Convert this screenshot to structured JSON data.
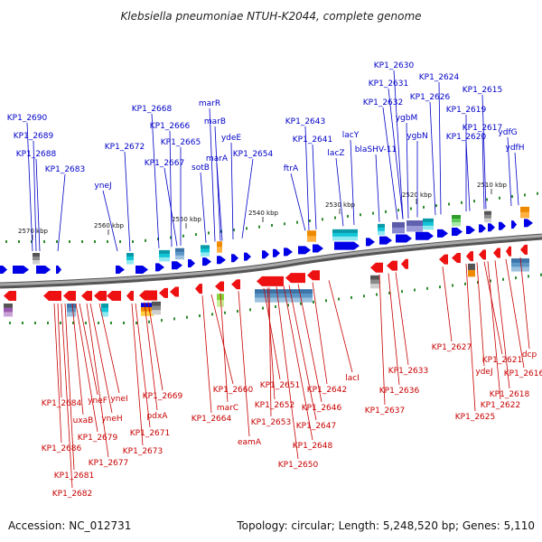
{
  "title": "Klebsiella pneumoniae NTUH-K2044, complete genome",
  "footer": {
    "accession": "Accession: NC_012731",
    "summary": "Topology: circular; Length: 5,248,520 bp; Genes: 5,110"
  },
  "colors": {
    "forward": "#0000e6",
    "reverse": "#ee1111",
    "forward_label": "#0000c8",
    "reverse_label": "#c80000",
    "backbone": "#7a7a7a",
    "tick": "#2e8b2e"
  },
  "ticks": [
    "2570 kbp",
    "2560 kbp",
    "2550 kbp",
    "2540 kbp",
    "2530 kbp",
    "2520 kbp",
    "2510 kbp"
  ],
  "forward_labels": [
    "KP1_2690",
    "KP1_2689",
    "KP1_2688",
    "KP1_2683",
    "yneJ",
    "KP1_2672",
    "KP1_2668",
    "KP1_2666",
    "KP1_2665",
    "KP1_2667",
    "marR",
    "marB",
    "ydeE",
    "sotB",
    "marA",
    "KP1_2654",
    "KP1_2643",
    "KP1_2641",
    "ftrA",
    "lacY",
    "lacZ",
    "blaSHV-11",
    "KP1_2630",
    "KP1_2631",
    "KP1_2632",
    "ygbM",
    "ygbN",
    "KP1_2624",
    "KP1_2626",
    "KP1_2615",
    "KP1_2619",
    "KP1_2617",
    "KP1_2620",
    "ydfG",
    "ydfH"
  ],
  "reverse_labels": [
    "KP1_2684",
    "KP1_2686",
    "KP1_2681",
    "KP1_2682",
    "uxaB",
    "yneF",
    "KP1_2679",
    "yneH",
    "KP1_2677",
    "yneI",
    "KP1_2669",
    "pdxA",
    "KP1_2671",
    "KP1_2673",
    "KP1_2664",
    "KP1_2660",
    "marC",
    "eamA",
    "KP1_2651",
    "KP1_2652",
    "KP1_2653",
    "KP1_2646",
    "KP1_2642",
    "lacI",
    "KP1_2647",
    "KP1_2648",
    "KP1_2650",
    "KP1_2633",
    "KP1_2636",
    "KP1_2637",
    "KP1_2627",
    "KP1_2621",
    "ydeJ",
    "KP1_2616",
    "dcp",
    "KP1_2618",
    "KP1_2622",
    "KP1_2625"
  ]
}
